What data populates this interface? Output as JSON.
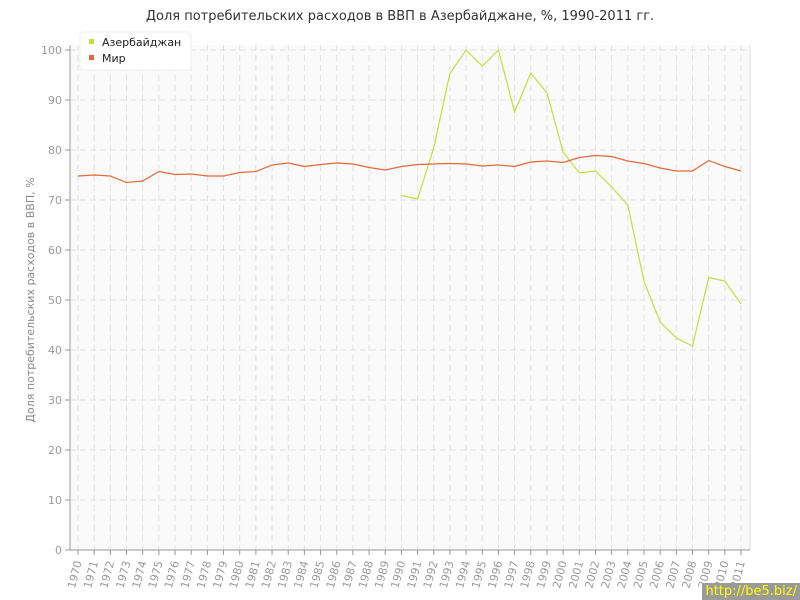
{
  "chart_data": {
    "type": "line",
    "title": "Доля потребительских расходов в ВВП в Азербайджане, %, 1990-2011 гг.",
    "ylabel": "Доля потребительских расходов в ВВП, %",
    "xlabel": "",
    "ylim": [
      0,
      100
    ],
    "yticks": [
      0,
      10,
      20,
      30,
      40,
      50,
      60,
      70,
      80,
      90,
      100
    ],
    "x": [
      1970,
      1971,
      1972,
      1973,
      1974,
      1975,
      1976,
      1977,
      1978,
      1979,
      1980,
      1981,
      1982,
      1983,
      1984,
      1985,
      1986,
      1987,
      1988,
      1989,
      1990,
      1991,
      1992,
      1993,
      1994,
      1995,
      1996,
      1997,
      1998,
      1999,
      2000,
      2001,
      2002,
      2003,
      2004,
      2005,
      2006,
      2007,
      2008,
      2009,
      2010,
      2011
    ],
    "grid": true,
    "legend": "top-left",
    "series": [
      {
        "name": "Азербайджан",
        "color": "#c5de3c",
        "values": [
          null,
          null,
          null,
          null,
          null,
          null,
          null,
          null,
          null,
          null,
          null,
          null,
          null,
          null,
          null,
          null,
          null,
          null,
          null,
          null,
          70.9,
          70.2,
          80.5,
          95.3,
          100,
          96.8,
          100,
          87.6,
          95.4,
          91.4,
          79.6,
          75.4,
          75.8,
          72.6,
          69.0,
          53.7,
          45.6,
          42.4,
          40.8,
          54.5,
          53.8,
          49.2
        ]
      },
      {
        "name": "Мир",
        "color": "#e8673a",
        "values": [
          74.8,
          75.0,
          74.8,
          73.5,
          73.8,
          75.7,
          75.1,
          75.2,
          74.8,
          74.8,
          75.5,
          75.7,
          77.0,
          77.4,
          76.7,
          77.1,
          77.4,
          77.2,
          76.5,
          76.0,
          76.7,
          77.1,
          77.2,
          77.3,
          77.2,
          76.8,
          77.0,
          76.7,
          77.6,
          77.8,
          77.5,
          78.5,
          78.9,
          78.7,
          77.8,
          77.3,
          76.4,
          75.8,
          75.8,
          77.9,
          76.7,
          75.8
        ]
      }
    ]
  },
  "watermark": "http://be5.biz/"
}
